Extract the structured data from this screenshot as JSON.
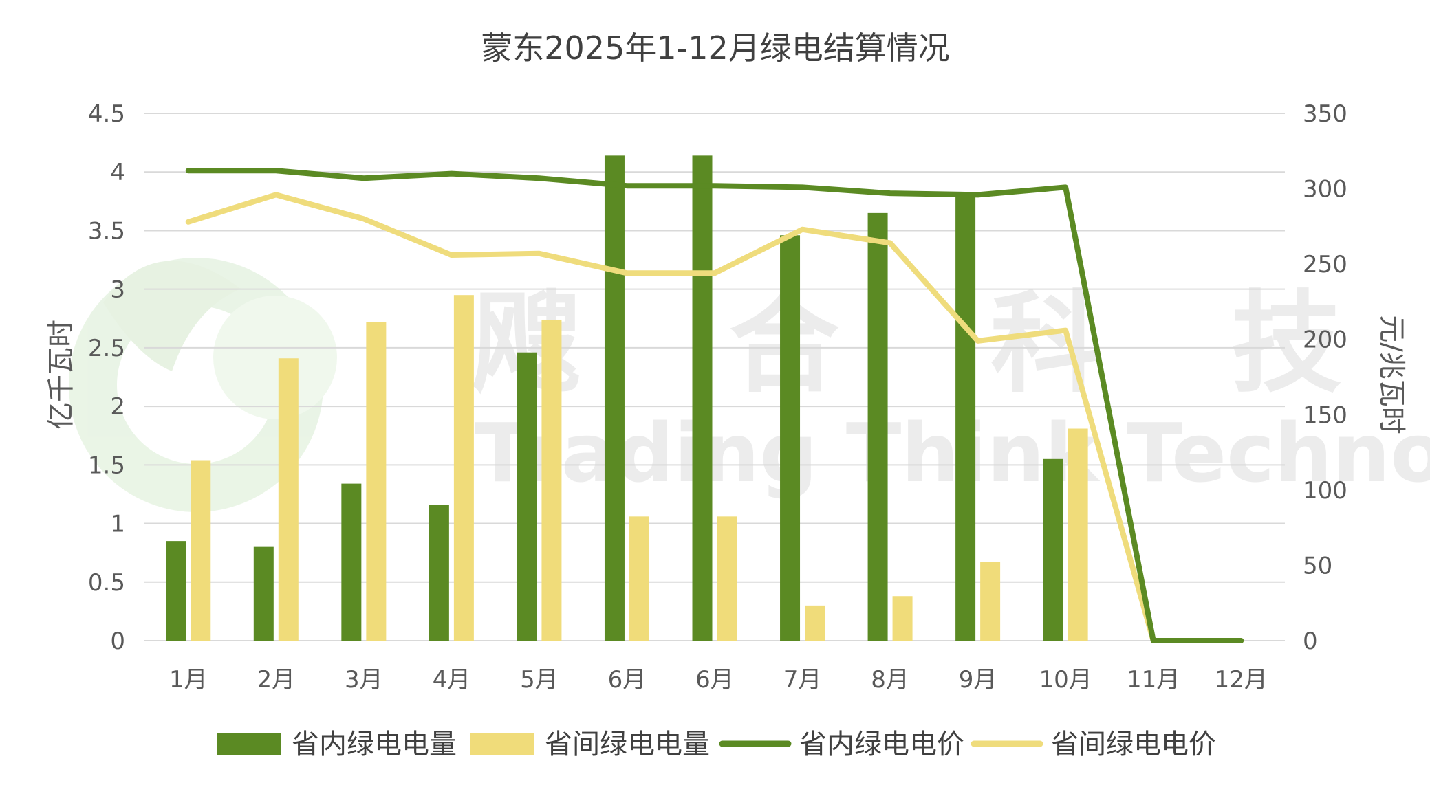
{
  "colors": {
    "inner_bar": "#5b8a23",
    "inter_bar": "#f0dc7a",
    "inner_line": "#5b8a23",
    "inter_line": "#efdc7c",
    "grid": "#d9d9d9",
    "text": "#595959"
  },
  "watermark": {
    "cn": [
      "飕",
      "合",
      "科",
      "技"
    ],
    "en": "Trading Think Technology"
  },
  "chart_data": {
    "type": "bar",
    "title": "蒙东2025年1-12月绿电结算情况",
    "categories": [
      "1月",
      "2月",
      "3月",
      "4月",
      "5月",
      "6月",
      "6月",
      "7月",
      "8月",
      "9月",
      "10月",
      "11月",
      "12月"
    ],
    "y_left": {
      "label": "亿千瓦时",
      "range": [
        0,
        4.5
      ],
      "ticks": [
        "0",
        "0.5",
        "1",
        "1.5",
        "2",
        "2.5",
        "3",
        "3.5",
        "4",
        "4.5"
      ]
    },
    "y_right": {
      "label": "元/兆瓦时",
      "range": [
        0,
        350
      ],
      "ticks": [
        "0",
        "50",
        "100",
        "150",
        "200",
        "250",
        "300",
        "350"
      ]
    },
    "grid": true,
    "legend_position": "bottom",
    "series": [
      {
        "name": "省内绿电电量",
        "kind": "bar",
        "axis": "left",
        "values": [
          0.85,
          0.8,
          1.34,
          1.16,
          2.46,
          4.14,
          4.14,
          3.46,
          3.65,
          3.8,
          1.55,
          0,
          0
        ]
      },
      {
        "name": "省间绿电电量",
        "kind": "bar",
        "axis": "left",
        "values": [
          1.54,
          2.41,
          2.72,
          2.95,
          2.74,
          1.06,
          1.06,
          0.3,
          0.38,
          0.67,
          1.81,
          0,
          0
        ]
      },
      {
        "name": "省内绿电电价",
        "kind": "line",
        "axis": "right",
        "values": [
          312,
          312,
          307,
          310,
          307,
          302,
          302,
          301,
          297,
          296,
          301,
          0,
          0
        ]
      },
      {
        "name": "省间绿电电价",
        "kind": "line",
        "axis": "right",
        "values": [
          278,
          296,
          280,
          256,
          257,
          244,
          244,
          273,
          264,
          199,
          206,
          0,
          0
        ]
      }
    ]
  }
}
